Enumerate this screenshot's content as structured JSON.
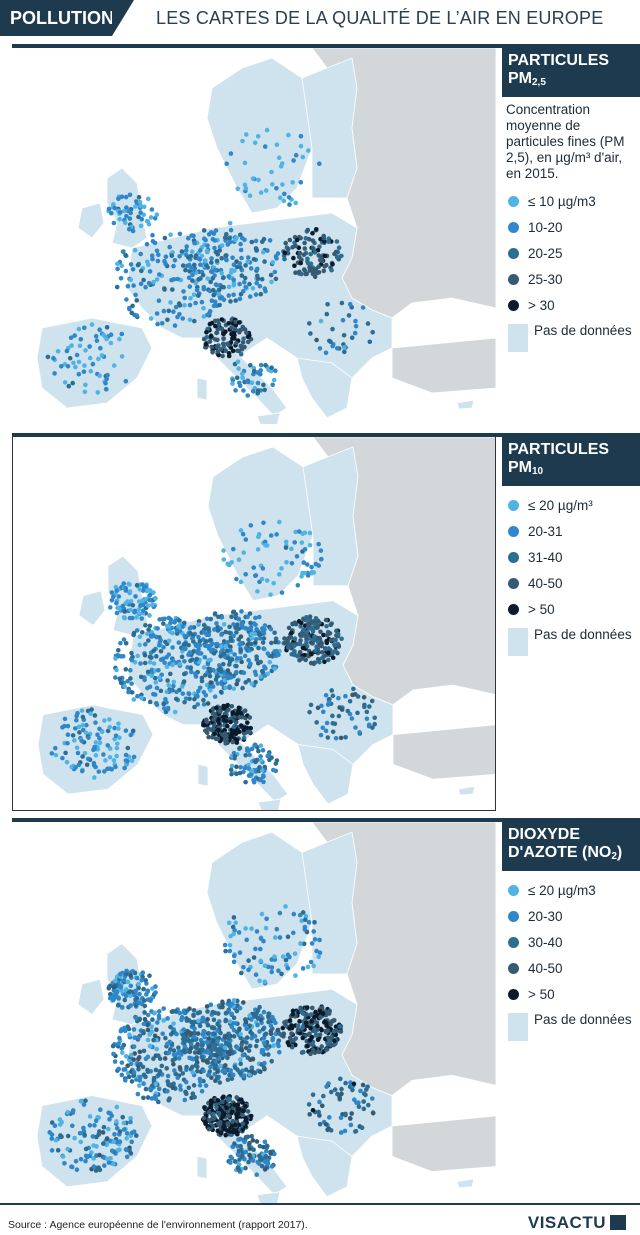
{
  "header": {
    "tag": "POLLUTION",
    "title": "LES CARTES DE LA QUALITÉ DE L’AIR EN EUROPE"
  },
  "maps": [
    {
      "title_main": "PARTICULES",
      "title_sub_prefix": "PM",
      "title_sub": "2,5",
      "title_suffix": "",
      "description": "Concentration moyenne de particules fines (PM 2,5), en µg/m³ d'air, en 2015.",
      "legend": [
        {
          "label": "≤ 10 µg/m3",
          "color": "#4fb3e3"
        },
        {
          "label": "10-20",
          "color": "#2f86c8"
        },
        {
          "label": "20-25",
          "color": "#2c6d92"
        },
        {
          "label": "25-30",
          "color": "#355a72"
        },
        {
          "label": "> 30",
          "color": "#0b1b2c"
        }
      ],
      "nodata_label": "Pas de données",
      "density": 1.0,
      "dark_bias": 0.15
    },
    {
      "title_main": "PARTICULES",
      "title_sub_prefix": "PM",
      "title_sub": "10",
      "title_suffix": "",
      "description": "",
      "legend": [
        {
          "label": "≤ 20 µg/m³",
          "color": "#4fb3e3"
        },
        {
          "label": "20-31",
          "color": "#2f86c8"
        },
        {
          "label": "31-40",
          "color": "#2c6d92"
        },
        {
          "label": "40-50",
          "color": "#355a72"
        },
        {
          "label": "> 50",
          "color": "#0b1b2c"
        }
      ],
      "nodata_label": "Pas de données",
      "density": 1.7,
      "dark_bias": 0.2
    },
    {
      "title_main": "DIOXYDE",
      "title_sub_prefix": "D'AZOTE (NO",
      "title_sub": "2",
      "title_suffix": ")",
      "description": "",
      "legend": [
        {
          "label": "≤ 20 µg/m3",
          "color": "#4fb3e3"
        },
        {
          "label": "20-30",
          "color": "#2f86c8"
        },
        {
          "label": "30-40",
          "color": "#2c6d92"
        },
        {
          "label": "40-50",
          "color": "#355a72"
        },
        {
          "label": "> 50",
          "color": "#0b1b2c"
        }
      ],
      "nodata_label": "Pas de données",
      "density": 2.0,
      "dark_bias": 0.35
    }
  ],
  "colors": {
    "land": "#cfe3ee",
    "no_data_land": "#d4d7d9",
    "border": "#ffffff",
    "header_bg": "#1e3a4f"
  },
  "footer": {
    "source": "Source : Agence européenne de l'environnement (rapport 2017).",
    "brand": "VISACTU"
  }
}
